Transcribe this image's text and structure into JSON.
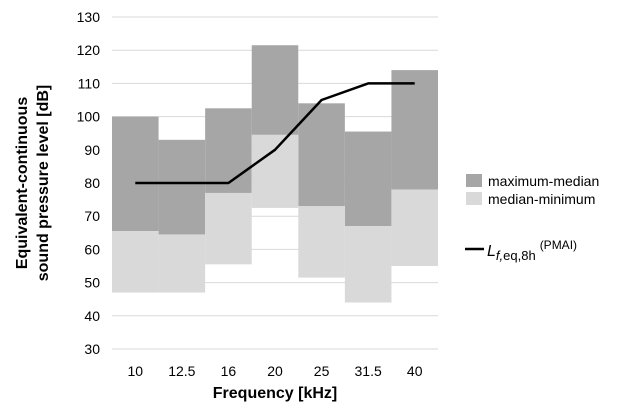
{
  "chart_data": {
    "type": "bar",
    "categories": [
      "10",
      "12.5",
      "16",
      "20",
      "25",
      "31.5",
      "40"
    ],
    "series": [
      {
        "name": "maximum-median",
        "color": "#a6a6a6",
        "low": [
          65.5,
          64.5,
          77,
          94.5,
          73,
          67,
          78
        ],
        "high": [
          100,
          93,
          102.5,
          121.5,
          104,
          95.5,
          114
        ]
      },
      {
        "name": "median-minimum",
        "color": "#d9d9d9",
        "low": [
          47,
          47,
          55.5,
          72.5,
          51.5,
          44,
          55
        ],
        "high": [
          65.5,
          64.5,
          77,
          94.5,
          73,
          67,
          78
        ]
      }
    ],
    "line": {
      "name": "PMAI",
      "color": "#000000",
      "values": [
        80,
        80,
        80,
        90,
        105,
        110,
        110
      ]
    },
    "xlabel": "Frequency [kHz]",
    "ylabel_line1": "Equivalent-continuous",
    "ylabel_line2": "sound pressure  level  [dB]",
    "ylim": [
      30,
      130
    ],
    "yticks": [
      30,
      40,
      50,
      60,
      70,
      80,
      90,
      100,
      110,
      120,
      130
    ],
    "grid": true,
    "legend_position": "right"
  },
  "legend": {
    "max_median": "maximum-median",
    "median_min": "median-minimum",
    "line_main": "L",
    "line_sub": "f,",
    "line_sub2": "eq,8h",
    "line_sup": "(PMAI)"
  }
}
